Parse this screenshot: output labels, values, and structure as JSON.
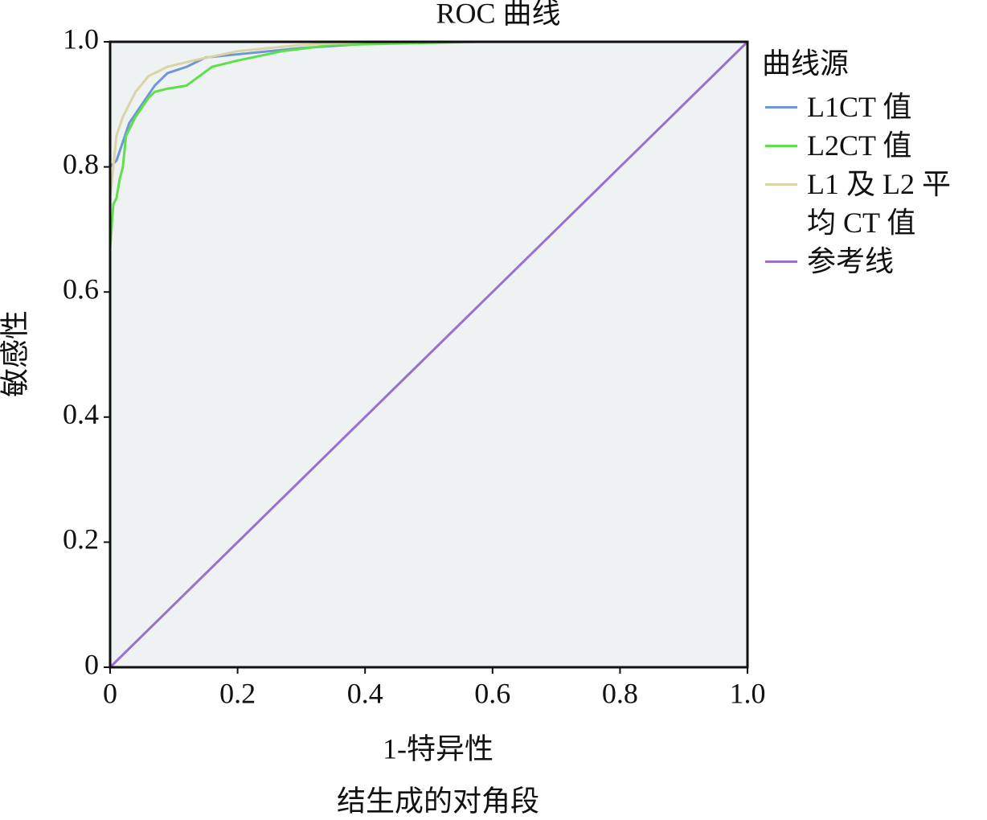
{
  "chart_data": {
    "type": "line",
    "title": "ROC 曲线",
    "x_label": "1-特异性",
    "y_label": "敏感性",
    "note": "结生成的对角段",
    "legend_title": "曲线源",
    "legend": "right",
    "xlim": [
      0,
      1
    ],
    "ylim": [
      0,
      1
    ],
    "xticks": [
      0,
      0.2,
      0.4,
      0.6,
      0.8,
      {
        "value": 1,
        "label": "1.0"
      }
    ],
    "yticks": [
      0,
      0.2,
      0.4,
      0.6,
      0.8,
      {
        "value": 1,
        "label": "1.0"
      }
    ],
    "background": "#eef2f2",
    "series": [
      {
        "name": "L1CT 值",
        "color": "#6f96d6",
        "x": [
          0,
          0,
          0.01,
          0.02,
          0.03,
          0.05,
          0.07,
          0.09,
          0.12,
          0.15,
          0.2,
          0.3,
          0.45,
          0.63,
          1
        ],
        "values": [
          0,
          0.8,
          0.81,
          0.84,
          0.87,
          0.9,
          0.93,
          0.95,
          0.96,
          0.975,
          0.98,
          0.99,
          1,
          1,
          1
        ]
      },
      {
        "name": "L2CT 值",
        "color": "#5ee04a",
        "x": [
          0,
          0,
          0.005,
          0.01,
          0.015,
          0.02,
          0.025,
          0.04,
          0.06,
          0.07,
          0.09,
          0.12,
          0.14,
          0.16,
          0.2,
          0.27,
          0.35,
          0.58,
          1
        ],
        "values": [
          0,
          0.67,
          0.74,
          0.75,
          0.78,
          0.8,
          0.85,
          0.88,
          0.91,
          0.92,
          0.925,
          0.93,
          0.945,
          0.96,
          0.97,
          0.985,
          0.995,
          1,
          1
        ]
      },
      {
        "name": "L1 及 L2 平均 CT 值",
        "color": "#d8d4a6",
        "x": [
          0,
          0,
          0.01,
          0.02,
          0.04,
          0.06,
          0.09,
          0.13,
          0.2,
          0.3,
          0.4,
          1
        ],
        "values": [
          0,
          0.75,
          0.85,
          0.88,
          0.92,
          0.945,
          0.96,
          0.97,
          0.985,
          0.995,
          1,
          1
        ]
      },
      {
        "name": "参考线",
        "color": "#9a6fd0",
        "x": [
          0,
          1
        ],
        "values": [
          0,
          1
        ]
      }
    ]
  }
}
